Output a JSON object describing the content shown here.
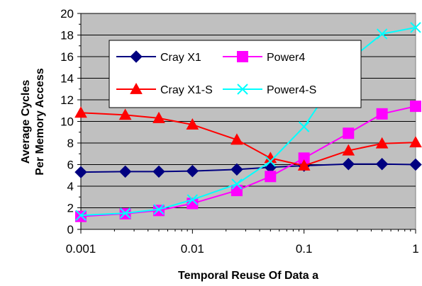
{
  "chart_data": {
    "type": "line",
    "xscale": "log",
    "x": [
      0.001,
      0.0025,
      0.005,
      0.01,
      0.025,
      0.05,
      0.1,
      0.25,
      0.5,
      1
    ],
    "xlim": [
      0.001,
      1
    ],
    "ylim": [
      0,
      20
    ],
    "yticks": [
      0,
      2,
      4,
      6,
      8,
      10,
      12,
      14,
      16,
      18,
      20
    ],
    "xticks": [
      0.001,
      0.01,
      0.1,
      1
    ],
    "xtick_labels": [
      "0.001",
      "0.01",
      "0.1",
      "1"
    ],
    "xlabel": "Temporal Reuse Of Data a",
    "ylabel_line1": "Average Cycles",
    "ylabel_line2": "Per Memory Access",
    "grid": true,
    "plot_background": "#c0c0c0",
    "legend_position": "inside top-left",
    "series": [
      {
        "name": "Cray X1",
        "color": "#000080",
        "marker": "diamond",
        "values": [
          5.3,
          5.35,
          5.35,
          5.4,
          5.55,
          5.75,
          5.9,
          6.05,
          6.05,
          6.0
        ]
      },
      {
        "name": "Power4",
        "color": "#ff00ff",
        "marker": "square",
        "values": [
          1.2,
          1.45,
          1.75,
          2.4,
          3.6,
          4.9,
          6.6,
          8.9,
          10.7,
          11.4
        ]
      },
      {
        "name": "Cray X1-S",
        "color": "#ff0000",
        "marker": "triangle",
        "values": [
          10.8,
          10.6,
          10.3,
          9.7,
          8.3,
          6.6,
          5.9,
          7.3,
          7.95,
          8.05
        ]
      },
      {
        "name": "Power4-S",
        "color": "#00ffff",
        "marker": "x",
        "values": [
          1.3,
          1.5,
          1.85,
          2.75,
          4.2,
          6.3,
          9.5,
          15.6,
          18.1,
          18.7
        ]
      }
    ]
  }
}
